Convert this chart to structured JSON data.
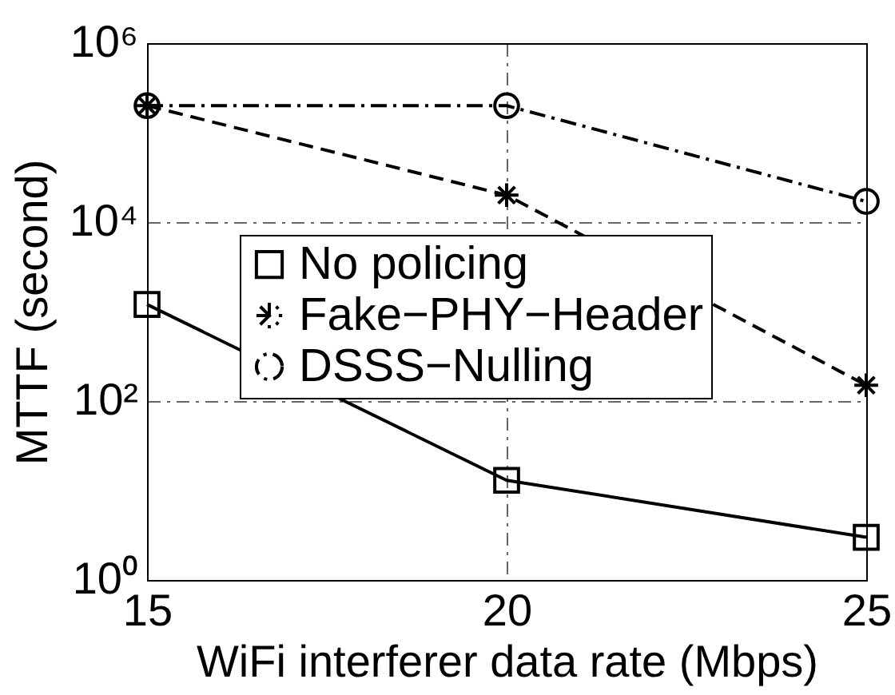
{
  "chart_data": {
    "type": "line",
    "xlabel": "WiFi interferer data rate (Mbps)",
    "ylabel": "MTTF (second)",
    "x": [
      15,
      20,
      25
    ],
    "series": [
      {
        "name": "No policing",
        "color": "#000000",
        "values": [
          1200,
          13,
          3
        ],
        "marker": "square",
        "line_style": "solid"
      },
      {
        "name": "Fake−PHY−Header",
        "color": "#000000",
        "values": [
          200000,
          20000,
          150
        ],
        "marker": "cross",
        "line_style": "dashed"
      },
      {
        "name": "DSSS−Nulling",
        "color": "#000000",
        "values": [
          200000,
          200000,
          17000
        ],
        "marker": "circle",
        "line_style": "dotted"
      }
    ],
    "log": "y",
    "xlim": [
      15,
      25
    ],
    "xticks": [
      15,
      20,
      25
    ],
    "ylim": [
      1,
      1000000
    ],
    "yticks": [
      {
        "value": 1,
        "label": "10⁰"
      },
      {
        "value": 100,
        "label": "10²"
      },
      {
        "value": 10000,
        "label": "10⁴"
      },
      {
        "value": 1000000,
        "label": "10⁶"
      }
    ],
    "grid": true,
    "legend": "center"
  }
}
